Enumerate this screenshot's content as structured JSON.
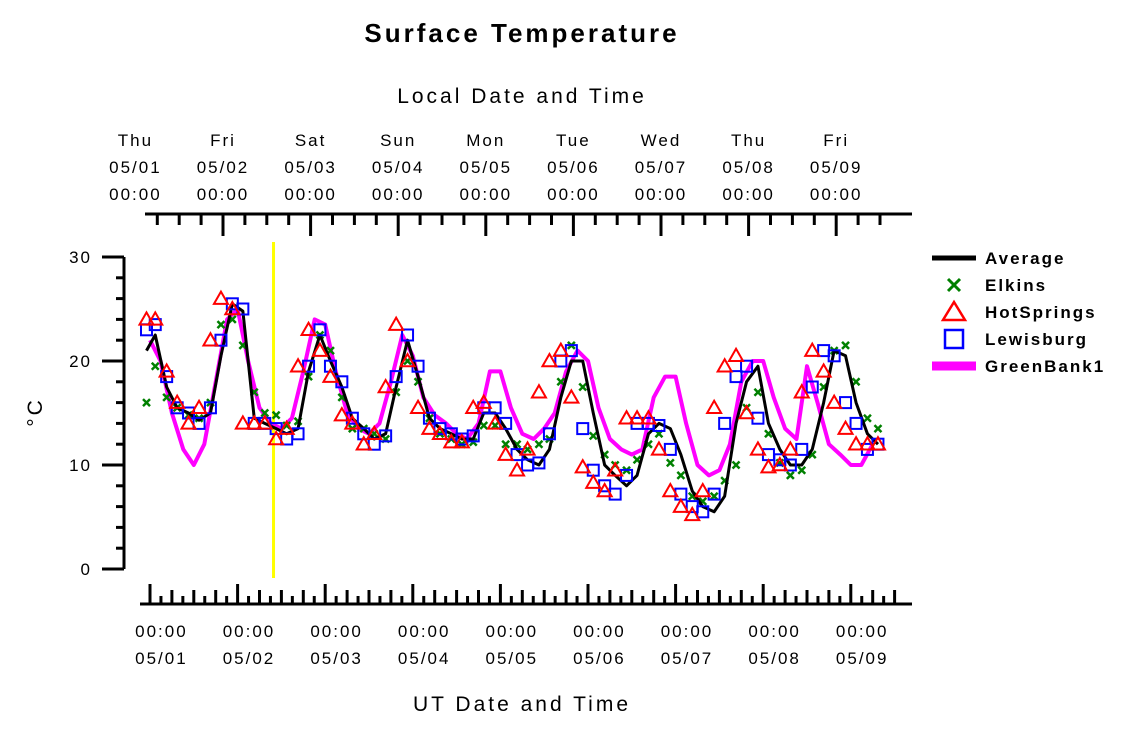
{
  "chart_data": {
    "type": "line",
    "title": "Surface Temperature",
    "top_axis_title": "Local Date and Time",
    "bottom_axis_title": "UT Date and Time",
    "ylabel": "°C",
    "ylim": [
      0,
      30
    ],
    "y_ticks": [
      "0",
      "10",
      "20",
      "30"
    ],
    "x_unit": "days since 05/01 00:00 UT",
    "xlim": [
      -0.1,
      8.35
    ],
    "local_offset_days": -0.1667,
    "top_ticks": [
      {
        "day": "Thu",
        "date": "05/01",
        "time": "00:00"
      },
      {
        "day": "Fri",
        "date": "05/02",
        "time": "00:00"
      },
      {
        "day": "Sat",
        "date": "05/03",
        "time": "00:00"
      },
      {
        "day": "Sun",
        "date": "05/04",
        "time": "00:00"
      },
      {
        "day": "Mon",
        "date": "05/05",
        "time": "00:00"
      },
      {
        "day": "Tue",
        "date": "05/06",
        "time": "00:00"
      },
      {
        "day": "Wed",
        "date": "05/07",
        "time": "00:00"
      },
      {
        "day": "Thu",
        "date": "05/08",
        "time": "00:00"
      },
      {
        "day": "Fri",
        "date": "05/09",
        "time": "00:00"
      }
    ],
    "bottom_ticks": [
      {
        "time": "00:00",
        "date": "05/01"
      },
      {
        "time": "00:00",
        "date": "05/02"
      },
      {
        "time": "00:00",
        "date": "05/03"
      },
      {
        "time": "00:00",
        "date": "05/04"
      },
      {
        "time": "00:00",
        "date": "05/05"
      },
      {
        "time": "00:00",
        "date": "05/06"
      },
      {
        "time": "00:00",
        "date": "05/07"
      },
      {
        "time": "00:00",
        "date": "05/08"
      },
      {
        "time": "00:00",
        "date": "05/09"
      }
    ],
    "marker_line_x": 1.41,
    "marker_line_color": "#ffff00",
    "series": [
      {
        "name": "Average",
        "style": "line",
        "color": "#000000",
        "x": [
          -0.04,
          0.06,
          0.19,
          0.31,
          0.44,
          0.56,
          0.69,
          0.81,
          0.94,
          1.06,
          1.19,
          1.31,
          1.44,
          1.56,
          1.69,
          1.81,
          1.94,
          2.06,
          2.19,
          2.31,
          2.44,
          2.56,
          2.69,
          2.81,
          2.94,
          3.06,
          3.19,
          3.31,
          3.44,
          3.56,
          3.69,
          3.81,
          3.94,
          4.06,
          4.19,
          4.31,
          4.44,
          4.56,
          4.69,
          4.81,
          4.94,
          5.06,
          5.19,
          5.31,
          5.44,
          5.56,
          5.69,
          5.81,
          5.94,
          6.06,
          6.19,
          6.31,
          6.44,
          6.56,
          6.69,
          6.81,
          6.94,
          7.06,
          7.19,
          7.31,
          7.44,
          7.56,
          7.69,
          7.81,
          7.94,
          8.06,
          8.19,
          8.31
        ],
        "y": [
          21.0,
          22.5,
          17.5,
          15.5,
          15.0,
          14.3,
          15.0,
          20.5,
          25.5,
          24.8,
          14.5,
          14.0,
          13.5,
          13.0,
          13.5,
          19.0,
          22.5,
          20.0,
          17.5,
          14.5,
          13.5,
          12.5,
          13.0,
          17.5,
          22.0,
          18.5,
          14.5,
          13.5,
          13.0,
          12.5,
          12.5,
          15.0,
          15.0,
          13.5,
          11.5,
          10.5,
          10.0,
          11.5,
          16.5,
          20.0,
          20.0,
          15.0,
          10.0,
          9.0,
          8.0,
          9.0,
          13.0,
          14.0,
          13.5,
          11.0,
          7.5,
          6.0,
          5.5,
          7.0,
          14.0,
          18.0,
          19.5,
          14.0,
          11.5,
          10.0,
          10.0,
          11.5,
          16.0,
          21.0,
          20.5,
          16.0,
          13.0,
          12.0
        ]
      },
      {
        "name": "Elkins",
        "style": "x",
        "color": "#008000",
        "x": [
          -0.04,
          0.06,
          0.19,
          0.31,
          0.44,
          0.56,
          0.69,
          0.81,
          0.94,
          1.06,
          1.19,
          1.31,
          1.44,
          1.56,
          1.69,
          1.81,
          1.94,
          2.06,
          2.19,
          2.31,
          2.44,
          2.56,
          2.69,
          2.81,
          2.94,
          3.06,
          3.19,
          3.31,
          3.44,
          3.56,
          3.69,
          3.81,
          3.94,
          4.06,
          4.19,
          4.31,
          4.44,
          4.56,
          4.69,
          4.81,
          4.94,
          5.06,
          5.19,
          5.31,
          5.44,
          5.56,
          5.69,
          5.81,
          5.94,
          6.06,
          6.19,
          6.31,
          6.44,
          6.56,
          6.69,
          6.81,
          6.94,
          7.06,
          7.19,
          7.31,
          7.44,
          7.56,
          7.69,
          7.81,
          7.94,
          8.06,
          8.19,
          8.31
        ],
        "y": [
          16.0,
          19.5,
          16.5,
          15.5,
          14.8,
          14.5,
          16.0,
          23.5,
          24.0,
          21.5,
          17.0,
          15.0,
          14.8,
          13.8,
          14.2,
          18.5,
          22.5,
          21.0,
          16.5,
          13.5,
          13.5,
          13.0,
          12.5,
          17.0,
          20.0,
          18.0,
          14.5,
          13.0,
          12.5,
          12.0,
          12.2,
          13.8,
          13.8,
          12.0,
          12.0,
          11.5,
          12.0,
          12.5,
          18.0,
          21.5,
          17.5,
          12.8,
          11.0,
          10.0,
          9.5,
          10.5,
          12.0,
          13.0,
          10.2,
          9.0,
          7.0,
          6.5,
          7.0,
          8.5,
          10.0,
          15.5,
          17.0,
          13.0,
          10.2,
          9.0,
          9.5,
          11.0,
          17.5,
          21.0,
          21.5,
          18.0,
          14.5,
          13.5
        ]
      },
      {
        "name": "HotSprings",
        "style": "triangle",
        "color": "#ff0000",
        "x": [
          -0.04,
          0.06,
          0.19,
          0.31,
          0.44,
          0.56,
          0.69,
          0.81,
          0.94,
          1.06,
          1.19,
          1.31,
          1.44,
          1.56,
          1.69,
          1.81,
          1.94,
          2.06,
          2.19,
          2.31,
          2.44,
          2.56,
          2.69,
          2.81,
          2.94,
          3.06,
          3.19,
          3.31,
          3.44,
          3.56,
          3.69,
          3.81,
          3.94,
          4.06,
          4.19,
          4.31,
          4.44,
          4.56,
          4.69,
          4.81,
          4.94,
          5.06,
          5.19,
          5.31,
          5.44,
          5.56,
          5.69,
          5.81,
          5.94,
          6.06,
          6.19,
          6.31,
          6.44,
          6.56,
          6.69,
          6.81,
          6.94,
          7.06,
          7.19,
          7.31,
          7.44,
          7.56,
          7.69,
          7.81,
          7.94,
          8.06,
          8.19,
          8.31
        ],
        "y": [
          24.0,
          24.0,
          19.0,
          16.0,
          14.0,
          15.5,
          22.0,
          26.0,
          25.0,
          14.0,
          14.0,
          14.0,
          12.5,
          13.5,
          19.5,
          23.0,
          21.0,
          18.5,
          14.8,
          14.0,
          12.0,
          13.0,
          17.5,
          23.5,
          20.0,
          15.5,
          13.5,
          13.0,
          12.2,
          12.2,
          15.5,
          16.0,
          14.0,
          11.0,
          9.5,
          11.5,
          17.0,
          20.0,
          21.0,
          16.5,
          9.8,
          8.3,
          7.5,
          9.5,
          14.5,
          14.5,
          14.5,
          11.5,
          7.5,
          6.0,
          5.2,
          7.5,
          15.5,
          19.5,
          20.5,
          15.0,
          11.5,
          9.8,
          10.0,
          11.5,
          17.0,
          21.0,
          19.0,
          16.0,
          13.5,
          12.0,
          12.0,
          12.0
        ]
      },
      {
        "name": "Lewisburg",
        "style": "square",
        "color": "#0000ff",
        "x": [
          -0.04,
          0.06,
          0.19,
          0.31,
          0.44,
          0.56,
          0.69,
          0.81,
          0.94,
          1.06,
          1.19,
          1.31,
          1.44,
          1.56,
          1.69,
          1.81,
          1.94,
          2.06,
          2.19,
          2.31,
          2.44,
          2.56,
          2.69,
          2.81,
          2.94,
          3.06,
          3.19,
          3.31,
          3.44,
          3.56,
          3.69,
          3.81,
          3.94,
          4.06,
          4.19,
          4.31,
          4.44,
          4.56,
          4.69,
          4.81,
          4.94,
          5.06,
          5.19,
          5.31,
          5.44,
          5.56,
          5.69,
          5.81,
          5.94,
          6.06,
          6.19,
          6.31,
          6.44,
          6.56,
          6.69,
          6.81,
          6.94,
          7.06,
          7.19,
          7.31,
          7.44,
          7.56,
          7.69,
          7.81,
          7.94,
          8.06,
          8.19,
          8.31
        ],
        "y": [
          23.0,
          23.5,
          18.5,
          15.5,
          15.0,
          14.0,
          15.5,
          22.0,
          25.5,
          25.0,
          14.0,
          14.0,
          13.5,
          12.5,
          13.0,
          19.5,
          23.0,
          19.5,
          18.0,
          14.5,
          13.0,
          12.0,
          12.8,
          18.5,
          22.5,
          19.5,
          14.5,
          13.5,
          13.0,
          12.5,
          12.8,
          15.5,
          15.5,
          14.0,
          11.0,
          10.0,
          10.2,
          13.0,
          20.0,
          21.0,
          13.5,
          9.5,
          8.0,
          7.2,
          9.0,
          14.0,
          14.0,
          13.8,
          11.5,
          7.2,
          6.0,
          5.5,
          7.2,
          14.0,
          18.5,
          19.5,
          14.5,
          11.0,
          10.5,
          10.0,
          11.5,
          17.5,
          21.0,
          20.5,
          16.0,
          14.0,
          11.5,
          12.0
        ]
      },
      {
        "name": "GreenBank1",
        "style": "thickline",
        "color": "#ff00ff",
        "x": [
          0.0,
          0.12,
          0.25,
          0.38,
          0.5,
          0.62,
          0.75,
          0.88,
          1.0,
          1.12,
          1.25,
          1.38,
          1.5,
          1.62,
          1.75,
          1.88,
          2.0,
          2.12,
          2.25,
          2.38,
          2.5,
          2.62,
          2.75,
          2.88,
          3.0,
          3.12,
          3.25,
          3.38,
          3.5,
          3.62,
          3.75,
          3.88,
          4.0,
          4.12,
          4.25,
          4.38,
          4.5,
          4.62,
          4.75,
          4.88,
          5.0,
          5.12,
          5.25,
          5.38,
          5.5,
          5.62,
          5.75,
          5.88,
          6.0,
          6.12,
          6.25,
          6.38,
          6.5,
          6.62,
          6.75,
          6.88,
          7.0,
          7.12,
          7.25,
          7.38,
          7.5,
          7.62,
          7.75,
          7.88,
          8.0,
          8.12,
          8.25
        ],
        "y": [
          22.0,
          20.0,
          15.0,
          11.5,
          10.0,
          12.0,
          18.0,
          24.0,
          25.0,
          20.0,
          15.5,
          14.0,
          13.5,
          14.5,
          19.0,
          24.0,
          23.5,
          19.0,
          15.0,
          13.5,
          13.0,
          14.0,
          18.0,
          22.5,
          20.5,
          16.5,
          14.8,
          14.0,
          13.0,
          12.5,
          14.0,
          19.0,
          19.0,
          15.5,
          13.0,
          12.5,
          13.5,
          15.0,
          19.0,
          21.0,
          20.0,
          15.5,
          12.5,
          11.5,
          11.0,
          11.5,
          16.5,
          18.5,
          18.5,
          14.0,
          10.0,
          9.0,
          9.5,
          12.0,
          18.0,
          20.0,
          20.0,
          16.5,
          13.5,
          12.5,
          19.5,
          16.0,
          12.0,
          11.0,
          10.0,
          10.0,
          12.0
        ]
      }
    ],
    "legend_position": "right"
  }
}
